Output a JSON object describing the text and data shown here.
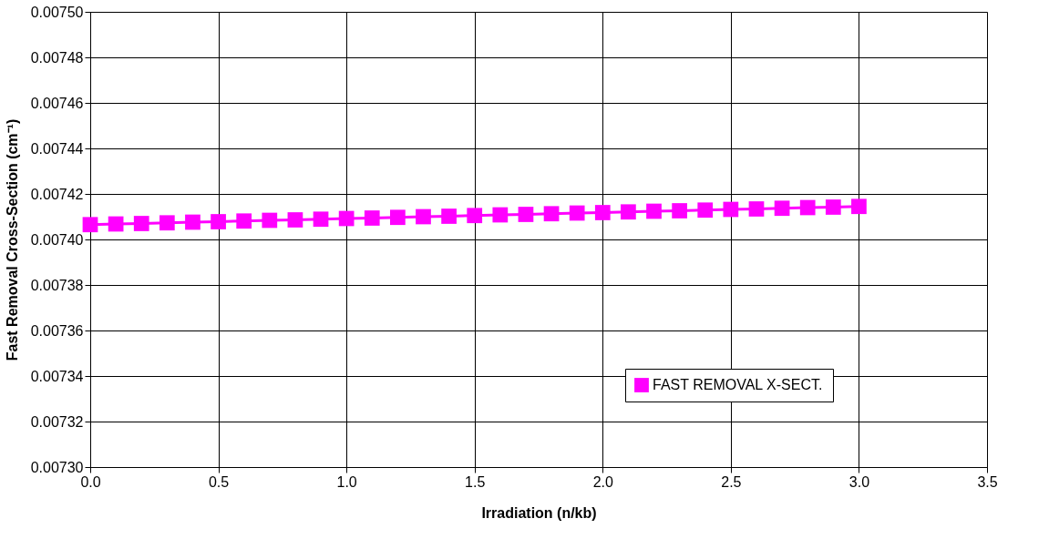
{
  "chart_data": {
    "type": "line",
    "xlabel": "Irradiation (n/kb)",
    "ylabel": "Fast Removal Cross-Section (cm⁻¹)",
    "x": [
      0.0,
      0.1,
      0.2,
      0.3,
      0.4,
      0.5,
      0.6,
      0.7,
      0.8,
      0.9,
      1.0,
      1.1,
      1.2,
      1.3,
      1.4,
      1.5,
      1.6,
      1.7,
      1.8,
      1.9,
      2.0,
      2.1,
      2.2,
      2.3,
      2.4,
      2.5,
      2.6,
      2.7,
      2.8,
      2.9,
      3.0
    ],
    "series": [
      {
        "name": "FAST REMOVAL X-SECT.",
        "color": "#ff00ff",
        "values": [
          0.0074065,
          0.0074068,
          0.007407,
          0.0074073,
          0.0074076,
          0.0074078,
          0.0074081,
          0.0074084,
          0.0074086,
          0.0074089,
          0.0074092,
          0.0074094,
          0.0074097,
          0.00741,
          0.0074102,
          0.0074105,
          0.0074108,
          0.007411,
          0.0074113,
          0.0074116,
          0.0074118,
          0.0074121,
          0.0074124,
          0.0074126,
          0.0074129,
          0.0074132,
          0.0074134,
          0.0074137,
          0.007414,
          0.0074142,
          0.0074145
        ]
      }
    ],
    "xlim": [
      0,
      3.5
    ],
    "xticks": [
      {
        "value": 0,
        "label": "0.0"
      },
      {
        "value": 0.5,
        "label": "0.5"
      },
      {
        "value": 1,
        "label": "1.0"
      },
      {
        "value": 1.5,
        "label": "1.5"
      },
      {
        "value": 2,
        "label": "2.0"
      },
      {
        "value": 2.5,
        "label": "2.5"
      },
      {
        "value": 3,
        "label": "3.0"
      },
      {
        "value": 3.5,
        "label": "3.5"
      }
    ],
    "ylim": [
      0.0073,
      0.0075
    ],
    "yticks": [
      {
        "value": 0.0073,
        "label": "0.00730"
      },
      {
        "value": 0.00732,
        "label": "0.00732"
      },
      {
        "value": 0.00734,
        "label": "0.00734"
      },
      {
        "value": 0.00736,
        "label": "0.00736"
      },
      {
        "value": 0.00738,
        "label": "0.00738"
      },
      {
        "value": 0.0074,
        "label": "0.00740"
      },
      {
        "value": 0.00742,
        "label": "0.00742"
      },
      {
        "value": 0.00744,
        "label": "0.00744"
      },
      {
        "value": 0.00746,
        "label": "0.00746"
      },
      {
        "value": 0.00748,
        "label": "0.00748"
      },
      {
        "value": 0.0075,
        "label": "0.00750"
      }
    ],
    "grid": true,
    "legend": "bottom right",
    "marker": "square",
    "line_style": "solid"
  }
}
